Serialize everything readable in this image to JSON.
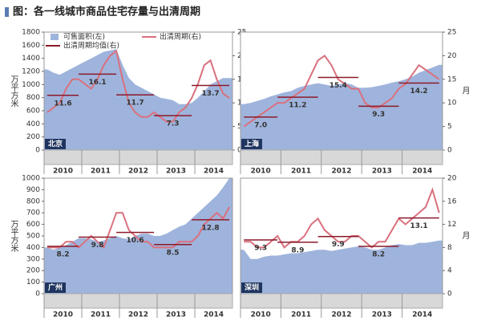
{
  "title": "图：各一线城市商品住宅存量与出清周期",
  "chart_data": [
    {
      "type": "area-line",
      "label": "北京",
      "years": [
        "2010",
        "2011",
        "2012",
        "2013",
        "2014"
      ],
      "ylim": [
        0,
        1800
      ],
      "yticks": [
        0,
        200,
        400,
        600,
        800,
        1000,
        1200,
        1400,
        1600,
        1800
      ],
      "ylabel": "万平方米",
      "y2lim": [
        0,
        25
      ],
      "y2ticks": [
        0,
        5,
        10,
        15,
        20,
        25
      ],
      "y2label": "月",
      "series": [
        {
          "name": "可售面积(左)",
          "type": "area",
          "color": "#9fb4dc",
          "values": [
            1230,
            1180,
            1150,
            1200,
            1250,
            1300,
            1350,
            1400,
            1450,
            1500,
            1520,
            1540,
            1300,
            1100,
            1000,
            950,
            900,
            850,
            800,
            780,
            760,
            700,
            700,
            720,
            800,
            900,
            1000,
            1050,
            1100,
            1100
          ]
        },
        {
          "name": "出清周期(右)",
          "type": "line",
          "axis": "y2",
          "color": "#d9707e",
          "values": [
            8,
            9,
            10,
            13,
            15,
            15,
            14,
            13,
            15,
            18,
            20,
            21,
            15,
            10,
            8,
            7,
            7,
            8,
            7,
            6,
            6,
            8,
            9,
            11,
            14,
            18,
            19,
            15,
            12,
            11
          ]
        }
      ],
      "averages": {
        "name": "出清周期均值(右)",
        "color": "#8b1a2a",
        "segments": [
          {
            "value": 11.6,
            "start": 0,
            "end": 5
          },
          {
            "value": 16.1,
            "start": 5,
            "end": 11
          },
          {
            "value": 11.7,
            "start": 11,
            "end": 17
          },
          {
            "value": 7.3,
            "start": 17,
            "end": 23
          },
          {
            "value": 13.7,
            "start": 23,
            "end": 29
          }
        ]
      }
    },
    {
      "type": "area-line",
      "label": "上海",
      "years": [
        "2010",
        "2011",
        "2012",
        "2013",
        "2014"
      ],
      "ylim": [
        0,
        1800
      ],
      "y2lim": [
        0,
        25
      ],
      "y2ticks": [
        0,
        5,
        10,
        15,
        20,
        25
      ],
      "y2label": "月",
      "series": [
        {
          "type": "area",
          "color": "#9fb4dc",
          "values": [
            700,
            720,
            750,
            780,
            820,
            850,
            880,
            900,
            950,
            980,
            1000,
            1020,
            1000,
            980,
            1000,
            1020,
            1000,
            950,
            950,
            960,
            980,
            1000,
            1030,
            1050,
            1080,
            1120,
            1180,
            1220,
            1260,
            1300
          ]
        },
        {
          "type": "line",
          "axis": "y2",
          "color": "#d9707e",
          "values": [
            5,
            6,
            7,
            8,
            9,
            10,
            10,
            11,
            12,
            13,
            16,
            19,
            20,
            18,
            15,
            14,
            13,
            13,
            10,
            9,
            9,
            10,
            11,
            13,
            14,
            16,
            18,
            17,
            16,
            15
          ]
        }
      ],
      "averages": {
        "color": "#8b1a2a",
        "segments": [
          {
            "value": 7,
            "label": "7.0",
            "start": 0,
            "end": 5
          },
          {
            "value": 11.2,
            "start": 5,
            "end": 11
          },
          {
            "value": 15.4,
            "start": 11,
            "end": 17
          },
          {
            "value": 9.3,
            "start": 17,
            "end": 23
          },
          {
            "value": 14.2,
            "start": 23,
            "end": 29
          }
        ]
      }
    },
    {
      "type": "area-line",
      "label": "广州",
      "years": [
        "2010",
        "2011",
        "2012",
        "2013",
        "2014"
      ],
      "ylim": [
        0,
        1000
      ],
      "yticks": [
        0,
        100,
        200,
        300,
        400,
        500,
        600,
        700,
        800,
        900,
        1000
      ],
      "ylabel": "万平方米",
      "y2lim": [
        0,
        20
      ],
      "series": [
        {
          "type": "area",
          "color": "#9fb4dc",
          "values": [
            400,
            380,
            400,
            420,
            450,
            480,
            480,
            470,
            450,
            460,
            480,
            500,
            480,
            470,
            500,
            520,
            520,
            500,
            500,
            520,
            550,
            580,
            600,
            650,
            700,
            750,
            800,
            850,
            920,
            1000
          ]
        },
        {
          "type": "line",
          "axis": "y2",
          "color": "#d9707e",
          "values": [
            8,
            8,
            8,
            9,
            9,
            8,
            9,
            10,
            9,
            8,
            11,
            14,
            14,
            11,
            10,
            9,
            9,
            8,
            8,
            8,
            8,
            9,
            9,
            9,
            10,
            12,
            13,
            14,
            13,
            15
          ]
        }
      ],
      "averages": {
        "color": "#8b1a2a",
        "segments": [
          {
            "value": 8.2,
            "start": 0,
            "end": 5
          },
          {
            "value": 9.8,
            "start": 5,
            "end": 11
          },
          {
            "value": 10.6,
            "start": 11,
            "end": 17
          },
          {
            "value": 8.5,
            "start": 17,
            "end": 23
          },
          {
            "value": 12.8,
            "start": 23,
            "end": 29
          }
        ]
      }
    },
    {
      "type": "area-line",
      "label": "深圳",
      "years": [
        "2010",
        "2011",
        "2012",
        "2013",
        "2014"
      ],
      "ylim": [
        0,
        1000
      ],
      "y2lim": [
        0,
        20
      ],
      "y2ticks": [
        0,
        4,
        8,
        12,
        16,
        20
      ],
      "y2label": "月",
      "series": [
        {
          "type": "area",
          "color": "#9fb4dc",
          "values": [
            380,
            300,
            300,
            320,
            330,
            330,
            340,
            350,
            350,
            360,
            370,
            380,
            380,
            370,
            380,
            390,
            400,
            410,
            400,
            380,
            380,
            400,
            420,
            430,
            420,
            420,
            440,
            440,
            450,
            460
          ]
        },
        {
          "type": "line",
          "axis": "y2",
          "color": "#d9707e",
          "values": [
            9,
            9,
            8,
            8,
            9,
            10,
            8,
            9,
            9,
            10,
            12,
            13,
            11,
            10,
            9,
            9,
            10,
            10,
            9,
            8,
            9,
            9,
            11,
            13,
            12,
            13,
            14,
            15,
            18,
            14
          ]
        }
      ],
      "averages": {
        "color": "#8b1a2a",
        "segments": [
          {
            "value": 9.3,
            "start": 0,
            "end": 5
          },
          {
            "value": 8.9,
            "start": 5,
            "end": 11
          },
          {
            "value": 9.9,
            "start": 11,
            "end": 17
          },
          {
            "value": 8.2,
            "start": 17,
            "end": 23
          },
          {
            "value": 13.1,
            "start": 23,
            "end": 29
          }
        ]
      }
    }
  ]
}
